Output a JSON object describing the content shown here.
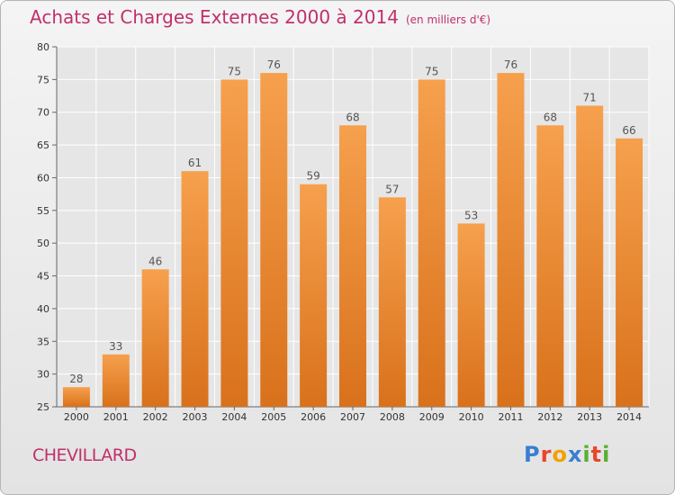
{
  "header": {
    "title": "Achats et Charges Externes 2000 à 2014",
    "unit": "(en milliers d'€)"
  },
  "footer": {
    "commune": "CHEVILLARD",
    "logo": "Proxiti",
    "logo_colors": [
      "#3a7fd0",
      "#e8452c",
      "#f2a100",
      "#3a7fd0",
      "#58b030",
      "#e8452c",
      "#58b030"
    ]
  },
  "colors": {
    "bar_light": "#f6a04d",
    "bar_dark": "#d9711b",
    "title": "#c0306b",
    "grid": "#ffffff"
  },
  "chart_data": {
    "type": "bar",
    "title": "Achats et Charges Externes 2000 à 2014",
    "subtitle": "(en milliers d'€)",
    "categories": [
      "2000",
      "2001",
      "2002",
      "2003",
      "2004",
      "2005",
      "2006",
      "2007",
      "2008",
      "2009",
      "2010",
      "2011",
      "2012",
      "2013",
      "2014"
    ],
    "values": [
      28,
      33,
      46,
      61,
      75,
      76,
      59,
      68,
      57,
      75,
      53,
      76,
      68,
      71,
      66
    ],
    "ylim": [
      25,
      80
    ],
    "yticks": [
      25,
      30,
      35,
      40,
      45,
      50,
      55,
      60,
      65,
      70,
      75,
      80
    ],
    "grid": true,
    "data_labels": true
  }
}
